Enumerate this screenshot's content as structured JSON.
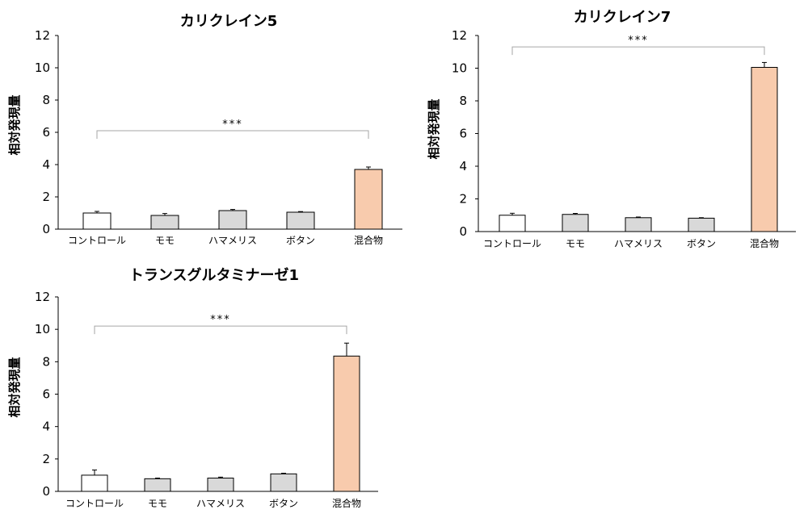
{
  "colors": {
    "control": "#ffffff",
    "single": "#d9d9d9",
    "mixture": "#f8cbad",
    "bar_border": "#000000",
    "bracket": "#a6a6a6"
  },
  "chart_data": [
    {
      "type": "bar",
      "title": "カリクレイン5",
      "ylabel": "相対発現量",
      "ylim": [
        0,
        12
      ],
      "yticks": [
        0,
        2,
        4,
        6,
        8,
        10,
        12
      ],
      "categories": [
        "コントロール",
        "モモ",
        "ハマメリス",
        "ボタン",
        "混合物"
      ],
      "values": [
        1.0,
        0.85,
        1.15,
        1.05,
        3.7
      ],
      "errors": [
        0.1,
        0.12,
        0.07,
        0.04,
        0.15
      ],
      "bar_colors": [
        "control",
        "single",
        "single",
        "single",
        "mixture"
      ],
      "significance": {
        "from": 0,
        "to": 4,
        "label": "***",
        "y": 6.1
      }
    },
    {
      "type": "bar",
      "title": "カリクレイン7",
      "ylabel": "相対発現量",
      "ylim": [
        0,
        12
      ],
      "yticks": [
        0,
        2,
        4,
        6,
        8,
        10,
        12
      ],
      "categories": [
        "コントロール",
        "モモ",
        "ハマメリス",
        "ボタン",
        "混合物"
      ],
      "values": [
        1.0,
        1.05,
        0.85,
        0.82,
        10.05
      ],
      "errors": [
        0.12,
        0.06,
        0.04,
        0.03,
        0.3
      ],
      "bar_colors": [
        "control",
        "single",
        "single",
        "single",
        "mixture"
      ],
      "significance": {
        "from": 0,
        "to": 4,
        "label": "***",
        "y": 11.3
      }
    },
    {
      "type": "bar",
      "title": "トランスグルタミナーゼ1",
      "ylabel": "相対発現量",
      "ylim": [
        0,
        12
      ],
      "yticks": [
        0,
        2,
        4,
        6,
        8,
        10,
        12
      ],
      "categories": [
        "コントロール",
        "モモ",
        "ハマメリス",
        "ボタン",
        "混合物"
      ],
      "values": [
        1.0,
        0.78,
        0.82,
        1.08,
        8.35
      ],
      "errors": [
        0.32,
        0.04,
        0.06,
        0.04,
        0.8
      ],
      "bar_colors": [
        "control",
        "single",
        "single",
        "single",
        "mixture"
      ],
      "significance": {
        "from": 0,
        "to": 4,
        "label": "***",
        "y": 10.2
      }
    }
  ]
}
